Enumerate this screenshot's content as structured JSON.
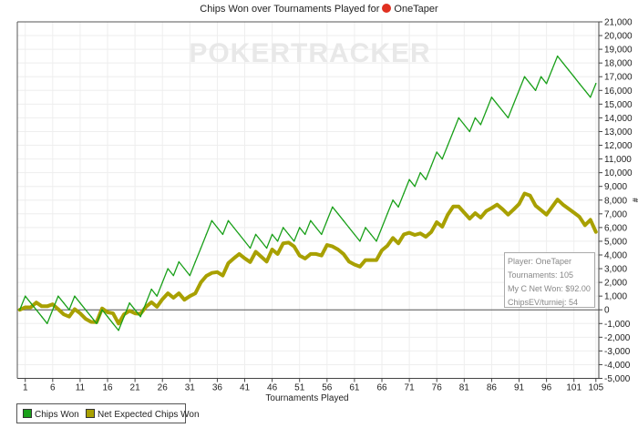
{
  "title": {
    "text": "Chips Won over Tournaments Played for",
    "player": "OneTaper",
    "icon": "pokerstars-spade-icon"
  },
  "watermark": "POKERTRACKER",
  "info_box": {
    "player": "Player: OneTaper",
    "tournaments": "Tournaments: 105",
    "net_won": "My C Net Won: $92.00",
    "chips_ev": "ChipsEV/turniej: 54"
  },
  "chart_data": {
    "type": "line",
    "title": "Chips Won over Tournaments Played for OneTaper",
    "xlabel": "Tournaments Played",
    "ylabel": "#",
    "xlim": [
      0,
      105
    ],
    "ylim": [
      -5000,
      21000
    ],
    "x_ticks": [
      1,
      6,
      11,
      16,
      21,
      26,
      31,
      36,
      41,
      46,
      51,
      56,
      61,
      66,
      71,
      76,
      81,
      86,
      91,
      96,
      101,
      105
    ],
    "y_ticks": [
      -5000,
      -4000,
      -3000,
      -2000,
      -1000,
      0,
      1000,
      2000,
      3000,
      4000,
      5000,
      6000,
      7000,
      8000,
      9000,
      10000,
      11000,
      12000,
      13000,
      14000,
      15000,
      16000,
      17000,
      18000,
      19000,
      20000,
      21000
    ],
    "y_axis_side": "right",
    "grid": true,
    "legend_position": "bottom-left",
    "series": [
      {
        "name": "Chips Won",
        "color": "#1aa01a",
        "values": [
          0,
          1000,
          500,
          0,
          -500,
          -1000,
          0,
          1000,
          500,
          0,
          1000,
          500,
          0,
          -500,
          -1000,
          0,
          -500,
          -1000,
          -1500,
          -500,
          500,
          0,
          -500,
          500,
          1500,
          1000,
          2000,
          3000,
          2500,
          3500,
          3000,
          2500,
          3500,
          4500,
          5500,
          6500,
          6000,
          5500,
          6500,
          6000,
          5500,
          5000,
          4500,
          5500,
          5000,
          4500,
          5500,
          5000,
          6000,
          5500,
          5000,
          6000,
          5500,
          6500,
          6000,
          5500,
          6500,
          7500,
          7000,
          6500,
          6000,
          5500,
          5000,
          6000,
          5500,
          5000,
          6000,
          7000,
          8000,
          7500,
          8500,
          9500,
          9000,
          10000,
          9500,
          10500,
          11500,
          11000,
          12000,
          13000,
          14000,
          13500,
          13000,
          14000,
          13500,
          14500,
          15500,
          15000,
          14500,
          14000,
          15000,
          16000,
          17000,
          16500,
          16000,
          17000,
          16500,
          17500,
          18500,
          18000,
          17500,
          17000,
          16500,
          16000,
          15500,
          16500
        ]
      },
      {
        "name": "Net Expected Chips Won",
        "color": "#a8a000",
        "values": [
          0,
          180,
          180,
          530,
          260,
          260,
          400,
          50,
          -330,
          -500,
          50,
          -260,
          -660,
          -880,
          -900,
          100,
          -180,
          -260,
          -1000,
          -330,
          -70,
          -260,
          -300,
          220,
          550,
          220,
          770,
          1200,
          880,
          1200,
          730,
          1000,
          1200,
          2000,
          2470,
          2690,
          2750,
          2500,
          3400,
          3750,
          4070,
          3750,
          3480,
          4230,
          3870,
          3520,
          4400,
          4070,
          4850,
          4900,
          4620,
          3960,
          3740,
          4070,
          4070,
          3960,
          4730,
          4620,
          4400,
          4070,
          3520,
          3300,
          3150,
          3630,
          3630,
          3630,
          4340,
          4670,
          5240,
          4850,
          5500,
          5620,
          5460,
          5570,
          5330,
          5680,
          6390,
          6060,
          6940,
          7530,
          7530,
          7090,
          6650,
          7050,
          6720,
          7200,
          7420,
          7670,
          7330,
          6940,
          7310,
          7710,
          8480,
          8330,
          7600,
          7270,
          6940,
          7490,
          8040,
          7670,
          7380,
          7090,
          6780,
          6170,
          6560,
          5680
        ]
      }
    ]
  }
}
